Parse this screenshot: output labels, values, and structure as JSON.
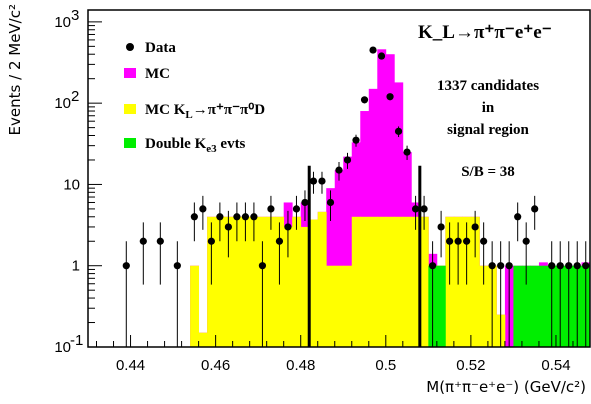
{
  "chart_data": {
    "type": "bar",
    "title": "K_L→π⁺π⁻e⁺e⁻",
    "xlabel": "M(π⁺π⁻e⁺e⁻) (GeV/c²)",
    "ylabel": "Events / 2 MeV/c²",
    "xlim": [
      0.43,
      0.548
    ],
    "ylim": [
      0.1,
      1400
    ],
    "y_scale": "log",
    "x_ticks": [
      "0.44",
      "0.46",
      "0.48",
      "0.5",
      "0.52",
      "0.54"
    ],
    "x_tick_values": [
      0.44,
      0.46,
      0.48,
      0.5,
      0.52,
      0.54
    ],
    "y_ticks": [
      {
        "value": 1000,
        "base": "10",
        "exp": "3"
      },
      {
        "value": 100,
        "base": "10",
        "exp": "2"
      },
      {
        "value": 10,
        "base": "10",
        "exp": ""
      },
      {
        "value": 1,
        "base": "1",
        "exp": ""
      },
      {
        "value": 0.1,
        "base": "10",
        "exp": "-1"
      }
    ],
    "bin_width": 0.002,
    "bin_low_edges": [
      0.454,
      0.456,
      0.458,
      0.46,
      0.462,
      0.464,
      0.466,
      0.468,
      0.47,
      0.472,
      0.474,
      0.476,
      0.478,
      0.48,
      0.482,
      0.484,
      0.486,
      0.488,
      0.49,
      0.492,
      0.494,
      0.496,
      0.498,
      0.5,
      0.502,
      0.504,
      0.506,
      0.508,
      0.51,
      0.512,
      0.514,
      0.516,
      0.518,
      0.52,
      0.522,
      0.524,
      0.526,
      0.528,
      0.53,
      0.532,
      0.534,
      0.536,
      0.538,
      0.54,
      0.542,
      0.544,
      0.546
    ],
    "series": [
      {
        "name": "MC",
        "color": "#ff00ff",
        "values": [
          1.0,
          0.15,
          4.0,
          4.0,
          4.0,
          4.0,
          4.0,
          4.0,
          4.0,
          4.0,
          4.0,
          6.0,
          4.0,
          6.0,
          3.7,
          4.6,
          9.0,
          15,
          22,
          33,
          80,
          150,
          460,
          400,
          180,
          25,
          6.0,
          4.0,
          1.4,
          1.0,
          4.0,
          4.0,
          4.0,
          4.0,
          1.0,
          1.0,
          0.25,
          1.0,
          1.0,
          1.0,
          1.0,
          1.1,
          1.0,
          1.0,
          1.0,
          1.0,
          1.1
        ]
      },
      {
        "name": "MC K_L→π⁺π⁻π⁰_D",
        "color": "#ffff00",
        "values": [
          1.0,
          0.15,
          4.0,
          4.0,
          4.0,
          4.0,
          4.0,
          4.0,
          4.0,
          4.0,
          4.0,
          3.0,
          4.0,
          3.0,
          3.7,
          4.6,
          1.0,
          1.0,
          1.0,
          4.0,
          4.0,
          4.0,
          4.0,
          4.0,
          4.0,
          4.0,
          4.0,
          4.0,
          1.0,
          1.0,
          4.0,
          4.0,
          4.0,
          4.0,
          1.0,
          1.0,
          0.25,
          0,
          0,
          0,
          0,
          0,
          0,
          0,
          0,
          0,
          0
        ]
      },
      {
        "name": "Double K_e3 evts",
        "color": "#00ee00",
        "values": [
          0,
          0,
          0,
          0,
          0,
          0,
          0,
          0,
          0,
          0,
          0,
          0,
          0,
          0,
          0,
          0,
          0,
          0,
          0,
          0,
          0,
          0,
          0,
          0,
          0,
          0,
          0,
          0,
          1.0,
          1.0,
          0,
          0,
          0,
          0,
          0,
          0,
          0,
          0,
          1.0,
          1.0,
          1.0,
          1.0,
          1.0,
          1.0,
          1.0,
          1.0,
          1.0
        ]
      }
    ],
    "data_points": {
      "name": "Data",
      "points": [
        {
          "x": 0.439,
          "y": 1
        },
        {
          "x": 0.443,
          "y": 2
        },
        {
          "x": 0.447,
          "y": 2
        },
        {
          "x": 0.451,
          "y": 1
        },
        {
          "x": 0.455,
          "y": 4
        },
        {
          "x": 0.457,
          "y": 5
        },
        {
          "x": 0.459,
          "y": 2
        },
        {
          "x": 0.461,
          "y": 4
        },
        {
          "x": 0.463,
          "y": 3
        },
        {
          "x": 0.465,
          "y": 4
        },
        {
          "x": 0.467,
          "y": 4
        },
        {
          "x": 0.469,
          "y": 4
        },
        {
          "x": 0.471,
          "y": 1
        },
        {
          "x": 0.473,
          "y": 5
        },
        {
          "x": 0.475,
          "y": 2
        },
        {
          "x": 0.477,
          "y": 3
        },
        {
          "x": 0.479,
          "y": 5
        },
        {
          "x": 0.481,
          "y": 6
        },
        {
          "x": 0.483,
          "y": 11
        },
        {
          "x": 0.485,
          "y": 11
        },
        {
          "x": 0.487,
          "y": 6
        },
        {
          "x": 0.489,
          "y": 15
        },
        {
          "x": 0.491,
          "y": 20
        },
        {
          "x": 0.493,
          "y": 35
        },
        {
          "x": 0.495,
          "y": 110
        },
        {
          "x": 0.497,
          "y": 450
        },
        {
          "x": 0.499,
          "y": 380
        },
        {
          "x": 0.501,
          "y": 120
        },
        {
          "x": 0.503,
          "y": 45
        },
        {
          "x": 0.505,
          "y": 25
        },
        {
          "x": 0.507,
          "y": 5
        },
        {
          "x": 0.509,
          "y": 5
        },
        {
          "x": 0.511,
          "y": 1
        },
        {
          "x": 0.513,
          "y": 3
        },
        {
          "x": 0.515,
          "y": 2
        },
        {
          "x": 0.517,
          "y": 2
        },
        {
          "x": 0.519,
          "y": 2
        },
        {
          "x": 0.521,
          "y": 3
        },
        {
          "x": 0.523,
          "y": 2
        },
        {
          "x": 0.525,
          "y": 1
        },
        {
          "x": 0.527,
          "y": 1
        },
        {
          "x": 0.529,
          "y": 1
        },
        {
          "x": 0.531,
          "y": 4
        },
        {
          "x": 0.533,
          "y": 2
        },
        {
          "x": 0.535,
          "y": 5
        },
        {
          "x": 0.539,
          "y": 1
        },
        {
          "x": 0.541,
          "y": 1
        },
        {
          "x": 0.543,
          "y": 1
        },
        {
          "x": 0.545,
          "y": 1
        },
        {
          "x": 0.547,
          "y": 1
        }
      ]
    },
    "signal_region": [
      0.482,
      0.508
    ],
    "legend": {
      "placement": "top-left",
      "entries": [
        {
          "label": "Data",
          "sub": "",
          "sup": "",
          "rest": "",
          "color": "#000000",
          "marker": "dot"
        },
        {
          "label": "MC",
          "sub": "",
          "sup": "",
          "rest": "",
          "color": "#ff00ff",
          "marker": "box"
        },
        {
          "label": "MC K",
          "sub": "L",
          "sup": "",
          "rest": "→π⁺π⁻π⁰D",
          "color": "#ffff00",
          "marker": "box"
        },
        {
          "label": "Double K",
          "sub": "e3",
          "sup": "",
          "rest": " evts",
          "color": "#00ee00",
          "marker": "box"
        }
      ]
    },
    "annotations": [
      "1337 candidates",
      "in",
      "signal region",
      "S/B = 38"
    ]
  }
}
